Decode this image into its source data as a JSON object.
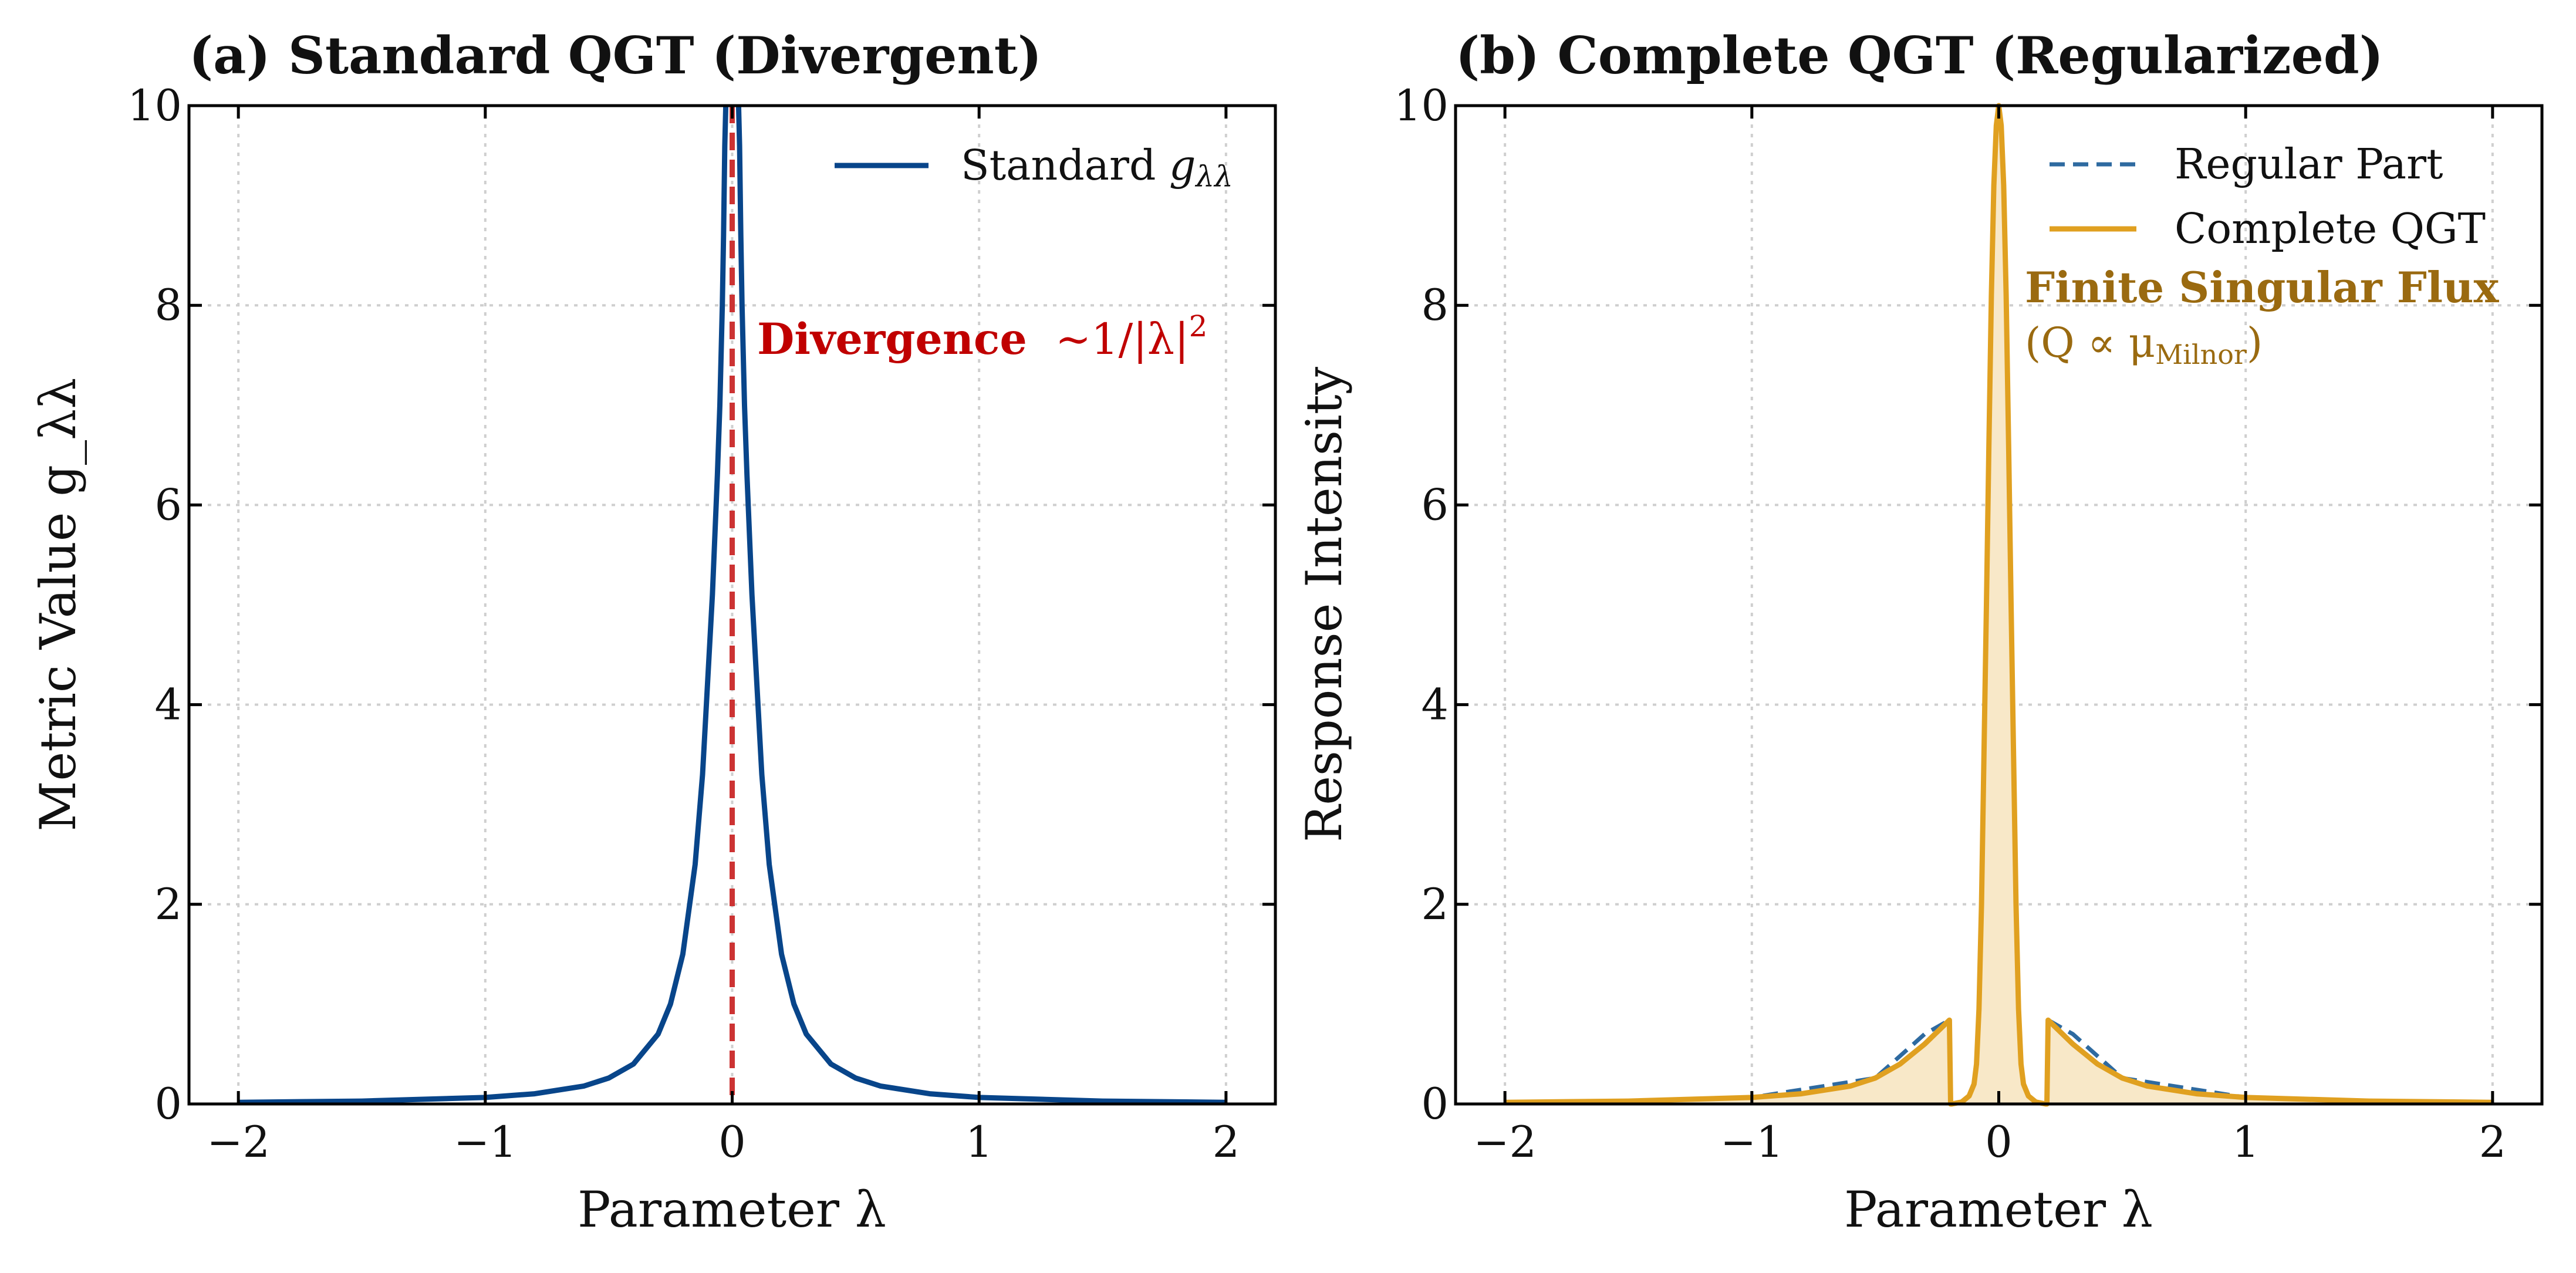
{
  "chart_data": [
    {
      "type": "line",
      "title": "(a) Standard QGT (Divergent)",
      "xlabel": "Parameter λ",
      "ylabel": "Metric Value g_λλ",
      "xlim": [
        -2.2,
        2.2
      ],
      "ylim": [
        0,
        10
      ],
      "xticks": [
        -2,
        -1,
        0,
        1,
        2
      ],
      "xtick_labels": [
        "−2",
        "−1",
        "0",
        "1",
        "2"
      ],
      "yticks": [
        0,
        2,
        4,
        6,
        8,
        10
      ],
      "ytick_labels": [
        "0",
        "2",
        "4",
        "6",
        "8",
        "10"
      ],
      "grid": true,
      "legend_position": "top-right",
      "series": [
        {
          "name": "Standard g_λλ",
          "color": "#08458a",
          "style": "solid",
          "x": [
            -2,
            -1.5,
            -1,
            -0.8,
            -0.6,
            -0.5,
            -0.4,
            -0.3,
            -0.25,
            -0.2,
            -0.15,
            -0.12,
            -0.1,
            -0.08,
            -0.06,
            -0.05,
            -0.04,
            -0.035,
            -0.03,
            0.03,
            0.035,
            0.04,
            0.05,
            0.06,
            0.08,
            0.1,
            0.12,
            0.15,
            0.2,
            0.25,
            0.3,
            0.4,
            0.5,
            0.6,
            0.8,
            1,
            1.5,
            2
          ],
          "y": [
            0.0164,
            0.0291,
            0.0654,
            0.102,
            0.18,
            0.26,
            0.4,
            0.7,
            1.0,
            1.5,
            2.4,
            3.3,
            4.2,
            5.1,
            6.3,
            7.0,
            8.0,
            8.7,
            9.6,
            9.6,
            8.7,
            8.0,
            7.0,
            6.3,
            5.1,
            4.2,
            3.3,
            2.4,
            1.5,
            1.0,
            0.7,
            0.4,
            0.26,
            0.18,
            0.102,
            0.0654,
            0.0291,
            0.0164
          ]
        }
      ],
      "reference_line": {
        "x": 0,
        "color": "#cc3333",
        "style": "dashed"
      },
      "annotation": {
        "text": "Divergence",
        "formula": "∼1/|λ|",
        "formula_sup": "2",
        "x": 0.1,
        "y": 7.6,
        "color": "#c00000"
      },
      "legend": [
        {
          "label": "Standard ",
          "math": "g",
          "math_sub": "λλ",
          "color": "#08458a",
          "style": "solid"
        }
      ]
    },
    {
      "type": "area",
      "title": "(b) Complete QGT (Regularized)",
      "xlabel": "Parameter λ",
      "ylabel": "Response Intensity",
      "xlim": [
        -2.2,
        2.2
      ],
      "ylim": [
        0,
        10
      ],
      "xticks": [
        -2,
        -1,
        0,
        1,
        2
      ],
      "xtick_labels": [
        "−2",
        "−1",
        "0",
        "1",
        "2"
      ],
      "yticks": [
        0,
        2,
        4,
        6,
        8,
        10
      ],
      "ytick_labels": [
        "0",
        "2",
        "4",
        "6",
        "8",
        "10"
      ],
      "grid": true,
      "legend_position": "top-right",
      "series": [
        {
          "name": "Regular Part",
          "color": "#2e6aa0",
          "style": "dashed",
          "x": [
            -2,
            -1.5,
            -1,
            -0.5,
            -0.3,
            -0.2,
            0.2,
            0.3,
            0.5,
            1,
            1.5,
            2
          ],
          "y": [
            0.0164,
            0.0291,
            0.0654,
            0.26,
            0.7,
            0.84,
            0.84,
            0.7,
            0.26,
            0.0654,
            0.0291,
            0.0164
          ]
        },
        {
          "name": "Complete QGT",
          "color": "#e0a020",
          "style": "solid",
          "fill": "#f8e8c8",
          "x": [
            -2,
            -1.5,
            -1,
            -0.8,
            -0.6,
            -0.5,
            -0.4,
            -0.3,
            -0.25,
            -0.2,
            -0.195,
            -0.19,
            -0.15,
            -0.12,
            -0.1,
            -0.09,
            -0.08,
            -0.07,
            -0.06,
            -0.05,
            -0.04,
            -0.03,
            -0.02,
            -0.01,
            0,
            0.01,
            0.02,
            0.03,
            0.04,
            0.05,
            0.06,
            0.07,
            0.08,
            0.09,
            0.1,
            0.12,
            0.15,
            0.19,
            0.195,
            0.2,
            0.25,
            0.3,
            0.4,
            0.5,
            0.6,
            0.8,
            1,
            1.5,
            2
          ],
          "y": [
            0.0164,
            0.0291,
            0.0654,
            0.102,
            0.18,
            0.26,
            0.4,
            0.6,
            0.72,
            0.84,
            0.0,
            0.0,
            0.02,
            0.08,
            0.2,
            0.4,
            0.95,
            2.0,
            3.5,
            5.0,
            6.6,
            8.1,
            9.2,
            9.8,
            10.0,
            9.8,
            9.2,
            8.1,
            6.6,
            5.0,
            3.5,
            2.0,
            0.95,
            0.4,
            0.2,
            0.08,
            0.02,
            0.0,
            0.0,
            0.84,
            0.72,
            0.6,
            0.4,
            0.26,
            0.18,
            0.102,
            0.0654,
            0.0291,
            0.0164
          ]
        }
      ],
      "annotation": {
        "text": "Finite Singular Flux",
        "formula": "(Q ∝ μ",
        "formula_sub": "Milnor",
        "formula_end": ")",
        "x": 0.1,
        "y": 8.0,
        "color": "#9a6a10"
      },
      "legend": [
        {
          "label": "Regular Part",
          "color": "#2e6aa0",
          "style": "dashed"
        },
        {
          "label": "Complete QGT",
          "color": "#e0a020",
          "style": "solid"
        }
      ]
    }
  ]
}
